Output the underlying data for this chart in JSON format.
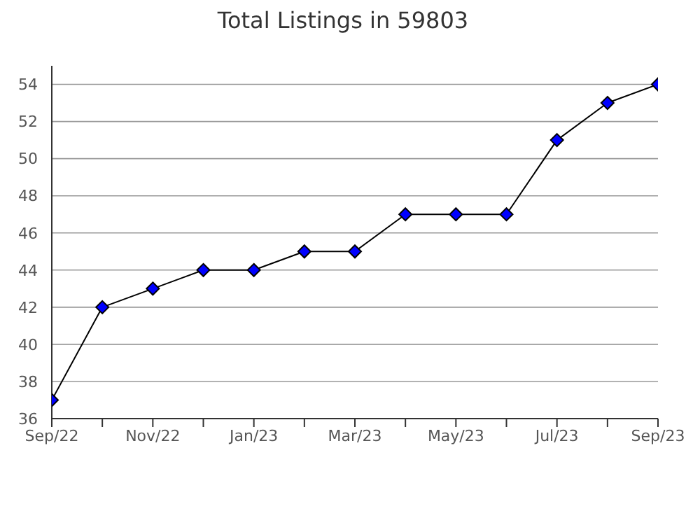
{
  "chart_data": {
    "type": "line",
    "title": "Total Listings in 59803",
    "categories": [
      "Sep/22",
      null,
      "Nov/22",
      null,
      "Jan/23",
      null,
      "Mar/23",
      null,
      "May/23",
      null,
      "Jul/23",
      null,
      "Sep/23"
    ],
    "series": [
      {
        "color": "#0000ff",
        "values": [
          37,
          42,
          43,
          44,
          44,
          45,
          45,
          47,
          47,
          47,
          51,
          53,
          54
        ]
      }
    ],
    "ylim": [
      36,
      55
    ],
    "yticks": [
      36,
      38,
      40,
      42,
      44,
      46,
      48,
      50,
      52,
      54
    ],
    "grid": "y",
    "marker": "diamond",
    "line_style": "solid",
    "legend": false
  }
}
